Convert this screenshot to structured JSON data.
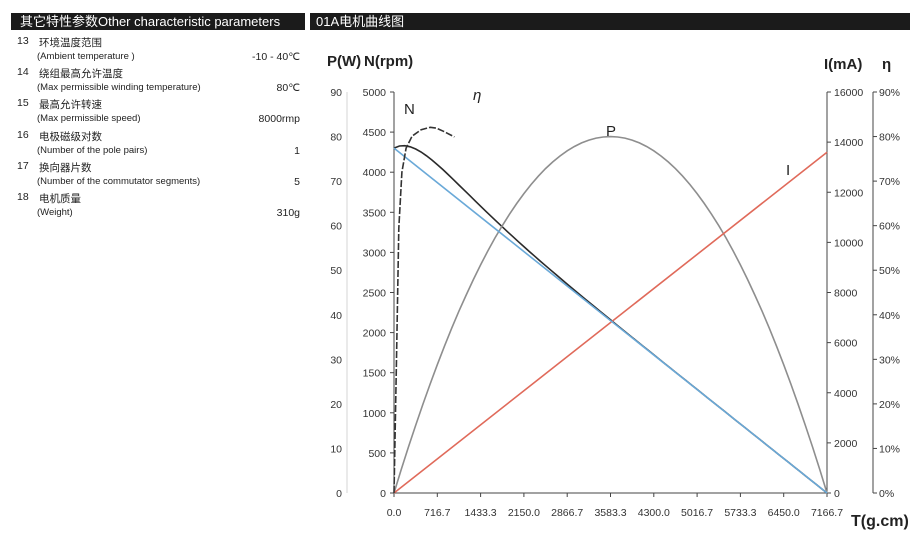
{
  "header": {
    "left_title": "其它特性参数Other characteristic parameters",
    "right_title": "01A电机曲线图"
  },
  "params": [
    {
      "num": "13",
      "cn": "环境温度范围",
      "en": "(Ambient  temperature )",
      "value": "-10 - 40℃"
    },
    {
      "num": "14",
      "cn": "绕组最高允许温度",
      "en": "(Max permissible winding temperature)",
      "value": "80℃"
    },
    {
      "num": "15",
      "cn": "最高允许转速",
      "en": "(Max permissible speed)",
      "value": "8000rmp"
    },
    {
      "num": "16",
      "cn": "电极磁级对数",
      "en": "(Number of  the pole pairs)",
      "value": "1"
    },
    {
      "num": "17",
      "cn": "换向器片数",
      "en": "(Number of the  commutator  segments)",
      "value": "5"
    },
    {
      "num": "18",
      "cn": "电机质量",
      "en": "(Weight)",
      "value": "310g"
    }
  ],
  "chart_data": {
    "type": "line",
    "title": "01A电机曲线图",
    "xlabel": "T(g.cm)",
    "xlim": [
      0,
      7166.7
    ],
    "x_ticks": [
      "0.0",
      "716.7",
      "1433.3",
      "2150.0",
      "2866.7",
      "3583.3",
      "4300.0",
      "5016.7",
      "5733.3",
      "6450.0",
      "7166.7"
    ],
    "axes": {
      "P": {
        "label": "P(W)",
        "ylim": [
          0,
          90
        ],
        "ticks": [
          "0",
          "10",
          "20",
          "30",
          "40",
          "50",
          "60",
          "70",
          "80",
          "90"
        ]
      },
      "N": {
        "label": "N(rpm)",
        "ylim": [
          0,
          5000
        ],
        "ticks": [
          "0",
          "500",
          "1000",
          "1500",
          "2000",
          "2500",
          "3000",
          "3500",
          "4000",
          "4500",
          "5000"
        ]
      },
      "I": {
        "label": "I(mA)",
        "ylim": [
          0,
          16000
        ],
        "ticks": [
          "0",
          "2000",
          "4000",
          "6000",
          "8000",
          "10000",
          "12000",
          "14000",
          "16000"
        ]
      },
      "eta": {
        "label": "η",
        "ylim": [
          0,
          90
        ],
        "ticks": [
          "0%",
          "10%",
          "20%",
          "30%",
          "40%",
          "50%",
          "60%",
          "70%",
          "80%",
          "90%"
        ]
      }
    },
    "series": [
      {
        "name": "N",
        "label": "N",
        "axis": "N",
        "color": "#2a2a2a",
        "x": [
          0,
          717,
          1433,
          2150,
          2867,
          3583,
          4300,
          5017,
          5733,
          6450,
          7167
        ],
        "y": [
          4300,
          3870,
          3440,
          3010,
          2580,
          2150,
          1720,
          1290,
          860,
          430,
          0
        ]
      },
      {
        "name": "P",
        "label": "P",
        "axis": "P",
        "color": "#8e8e8e",
        "x": [
          0,
          717,
          1433,
          2150,
          2867,
          3583,
          4300,
          5017,
          5733,
          6450,
          7167
        ],
        "y": [
          0,
          28.8,
          51.2,
          67.2,
          76.8,
          80,
          76.8,
          67.2,
          51.2,
          28.8,
          0
        ]
      },
      {
        "name": "I",
        "label": "I",
        "axis": "I",
        "color": "#e06a5a",
        "x": [
          0,
          7167
        ],
        "y": [
          0,
          13600
        ]
      },
      {
        "name": "eta_line",
        "label": "",
        "axis": "N",
        "color": "#6aa9d8",
        "x": [
          0,
          7167
        ],
        "y": [
          4300,
          0
        ]
      },
      {
        "name": "eta",
        "label": "η",
        "axis": "N",
        "color": "#333333",
        "x": [
          0,
          40,
          80,
          130,
          200,
          300,
          450,
          600,
          700,
          820,
          1000
        ],
        "y": [
          0,
          1600,
          3300,
          4000,
          4300,
          4450,
          4530,
          4560,
          4550,
          4510,
          4440
        ]
      }
    ]
  }
}
